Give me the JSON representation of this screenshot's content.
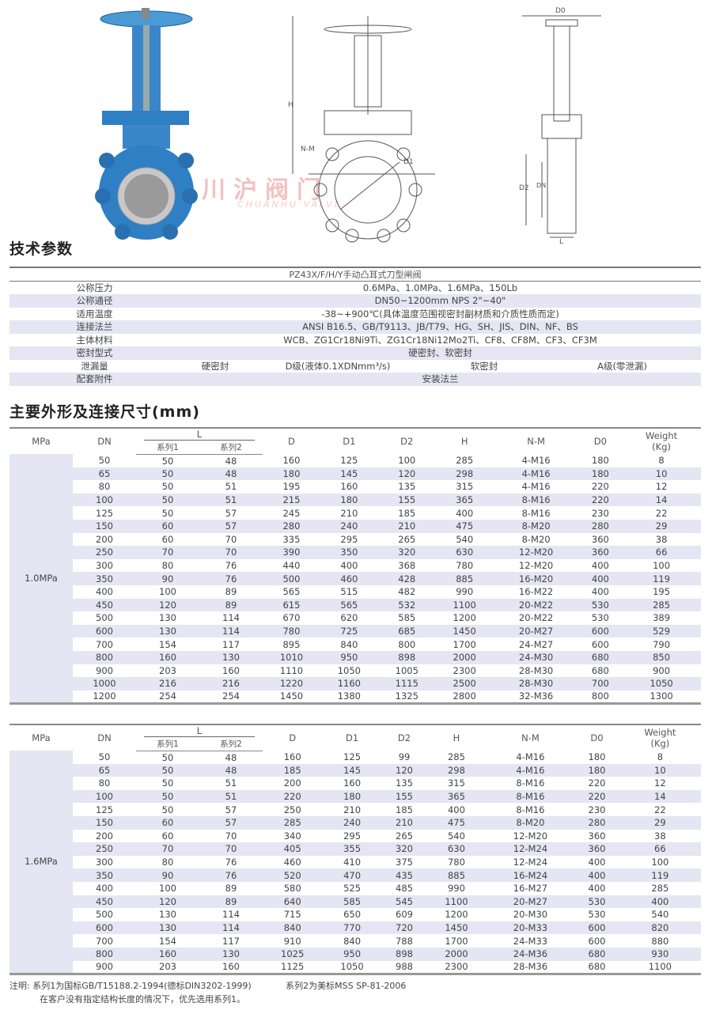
{
  "watermark": {
    "cn": "川沪阀门",
    "en": "CHUANHU VALVE"
  },
  "drawing_labels": {
    "h": "H",
    "nm": "N-M",
    "d1": "D1",
    "d0": "D0",
    "d2": "D2",
    "dn": "DN",
    "l": "L"
  },
  "section1_title": "技术参数",
  "params": {
    "header": "PZ43X/F/H/Y手动凸耳式刀型闸阀",
    "rows": [
      {
        "label": "公称压力",
        "value": "0.6MPa、1.0MPa、1.6MPa、150Lb"
      },
      {
        "label": "公称通径",
        "value": "DN50~1200mm NPS 2\"~40\""
      },
      {
        "label": "适用温度",
        "value": "-38~+900℃(具体温度范围视密封副材质和介质性质而定)"
      },
      {
        "label": "连接法兰",
        "value": "ANSI B16.5、GB/T9113、JB/T79、HG、SH、JIS、DIN、NF、BS"
      },
      {
        "label": "主体材料",
        "value": "WCB、ZG1Cr18Ni9Ti、ZG1Cr18Ni12Mo2Ti、CF8、CF8M、CF3、CF3M"
      },
      {
        "label": "密封型式",
        "value": "硬密封、软密封"
      }
    ],
    "leakage": {
      "label": "泄漏量",
      "hard": "硬密封",
      "hard_value": "D级(液体0.1XDNmm³/s)",
      "soft": "软密封",
      "soft_value": "A级(零泄漏)"
    },
    "accessory": {
      "label": "配套附件",
      "value": "安装法兰"
    }
  },
  "section2_title": "主要外形及连接尺寸(mm)",
  "columns": {
    "mpa": "MPa",
    "dn": "DN",
    "l": "L",
    "l1": "系列1",
    "l2": "系列2",
    "d": "D",
    "d1": "D1",
    "d2": "D2",
    "h": "H",
    "nm": "N-M",
    "d0": "D0",
    "weight": "Weight",
    "weight_unit": "(Kg)"
  },
  "tables": [
    {
      "pressure": "1.0MPa",
      "rows": [
        [
          "50",
          "50",
          "48",
          "160",
          "125",
          "100",
          "285",
          "4-M16",
          "180",
          "8"
        ],
        [
          "65",
          "50",
          "48",
          "180",
          "145",
          "120",
          "298",
          "4-M16",
          "180",
          "10"
        ],
        [
          "80",
          "50",
          "51",
          "195",
          "160",
          "135",
          "315",
          "4-M16",
          "220",
          "12"
        ],
        [
          "100",
          "50",
          "51",
          "215",
          "180",
          "155",
          "365",
          "8-M16",
          "220",
          "14"
        ],
        [
          "125",
          "50",
          "57",
          "245",
          "210",
          "185",
          "400",
          "8-M16",
          "230",
          "22"
        ],
        [
          "150",
          "60",
          "57",
          "280",
          "240",
          "210",
          "475",
          "8-M20",
          "280",
          "29"
        ],
        [
          "200",
          "60",
          "70",
          "335",
          "295",
          "265",
          "540",
          "8-M20",
          "360",
          "38"
        ],
        [
          "250",
          "70",
          "70",
          "390",
          "350",
          "320",
          "630",
          "12-M20",
          "360",
          "66"
        ],
        [
          "300",
          "80",
          "76",
          "440",
          "400",
          "368",
          "780",
          "12-M20",
          "400",
          "100"
        ],
        [
          "350",
          "90",
          "76",
          "500",
          "460",
          "428",
          "885",
          "16-M20",
          "400",
          "119"
        ],
        [
          "400",
          "100",
          "89",
          "565",
          "515",
          "482",
          "990",
          "16-M22",
          "400",
          "195"
        ],
        [
          "450",
          "120",
          "89",
          "615",
          "565",
          "532",
          "1100",
          "20-M22",
          "530",
          "285"
        ],
        [
          "500",
          "130",
          "114",
          "670",
          "620",
          "585",
          "1200",
          "20-M22",
          "530",
          "389"
        ],
        [
          "600",
          "130",
          "114",
          "780",
          "725",
          "685",
          "1450",
          "20-M27",
          "600",
          "529"
        ],
        [
          "700",
          "154",
          "117",
          "895",
          "840",
          "800",
          "1700",
          "24-M27",
          "600",
          "790"
        ],
        [
          "800",
          "160",
          "130",
          "1010",
          "950",
          "898",
          "2000",
          "24-M30",
          "680",
          "850"
        ],
        [
          "900",
          "203",
          "160",
          "1110",
          "1050",
          "1005",
          "2300",
          "28-M30",
          "680",
          "900"
        ],
        [
          "1000",
          "216",
          "216",
          "1220",
          "1160",
          "1115",
          "2500",
          "28-M30",
          "700",
          "1050"
        ],
        [
          "1200",
          "254",
          "254",
          "1450",
          "1380",
          "1325",
          "2800",
          "32-M36",
          "800",
          "1300"
        ]
      ]
    },
    {
      "pressure": "1.6MPa",
      "rows": [
        [
          "50",
          "50",
          "48",
          "160",
          "125",
          "99",
          "285",
          "4-M16",
          "180",
          "8"
        ],
        [
          "65",
          "50",
          "48",
          "185",
          "145",
          "120",
          "298",
          "4-M16",
          "180",
          "10"
        ],
        [
          "80",
          "50",
          "51",
          "200",
          "160",
          "135",
          "315",
          "8-M16",
          "220",
          "12"
        ],
        [
          "100",
          "50",
          "51",
          "220",
          "180",
          "155",
          "365",
          "8-M16",
          "220",
          "14"
        ],
        [
          "125",
          "50",
          "57",
          "250",
          "210",
          "185",
          "400",
          "8-M16",
          "230",
          "22"
        ],
        [
          "150",
          "60",
          "57",
          "285",
          "240",
          "210",
          "475",
          "8-M20",
          "280",
          "29"
        ],
        [
          "200",
          "60",
          "70",
          "340",
          "295",
          "265",
          "540",
          "12-M20",
          "360",
          "38"
        ],
        [
          "250",
          "70",
          "70",
          "405",
          "355",
          "320",
          "630",
          "12-M24",
          "360",
          "66"
        ],
        [
          "300",
          "80",
          "76",
          "460",
          "410",
          "375",
          "780",
          "12-M24",
          "400",
          "100"
        ],
        [
          "350",
          "90",
          "76",
          "520",
          "470",
          "435",
          "885",
          "16-M24",
          "400",
          "119"
        ],
        [
          "400",
          "100",
          "89",
          "580",
          "525",
          "485",
          "990",
          "16-M27",
          "400",
          "285"
        ],
        [
          "450",
          "120",
          "89",
          "640",
          "585",
          "545",
          "1100",
          "20-M27",
          "530",
          "400"
        ],
        [
          "500",
          "130",
          "114",
          "715",
          "650",
          "609",
          "1200",
          "20-M30",
          "530",
          "540"
        ],
        [
          "600",
          "130",
          "114",
          "840",
          "770",
          "720",
          "1450",
          "20-M33",
          "600",
          "820"
        ],
        [
          "700",
          "154",
          "117",
          "910",
          "840",
          "788",
          "1700",
          "24-M33",
          "600",
          "880"
        ],
        [
          "800",
          "160",
          "130",
          "1025",
          "950",
          "898",
          "2000",
          "24-M36",
          "680",
          "930"
        ],
        [
          "900",
          "203",
          "160",
          "1125",
          "1050",
          "988",
          "2300",
          "28-M36",
          "680",
          "1100"
        ]
      ]
    }
  ],
  "notes": {
    "label": "注明:",
    "line1a": "系列1为国标GB/T15188.2-1994(德标DIN3202-1999)",
    "line1b": "系列2为美标MSS SP-81-2006",
    "line2": "在客户没有指定结构长度的情况下，优先选用系列1。"
  },
  "colors": {
    "valve_blue": "#2f7fc4",
    "row_shade": "#e5e5f3",
    "watermark": "#dc5050"
  }
}
